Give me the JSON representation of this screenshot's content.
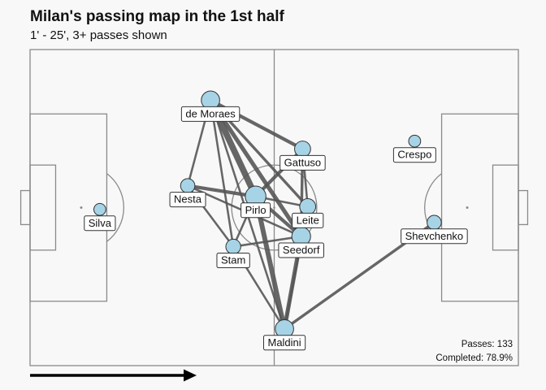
{
  "chart_data": {
    "type": "network",
    "title": "Milan's passing map in the 1st half",
    "subtitle": "1' - 25', 3+ passes shown",
    "pitch": {
      "length": 105,
      "width": 68
    },
    "attack_direction": "right",
    "stats": {
      "passes_label": "Passes: 133",
      "completed_label": "Completed: 78.9%"
    },
    "node_color": "#a6d4e6",
    "edge_color": "#555555",
    "players": [
      {
        "name": "Silva",
        "x": 15.0,
        "y": 33.6,
        "passes": 3
      },
      {
        "name": "de Moraes",
        "x": 38.8,
        "y": 57.1,
        "passes": 14
      },
      {
        "name": "Nesta",
        "x": 33.9,
        "y": 38.7,
        "passes": 6
      },
      {
        "name": "Pirlo",
        "x": 48.5,
        "y": 36.4,
        "passes": 20
      },
      {
        "name": "Stam",
        "x": 43.7,
        "y": 25.6,
        "passes": 7
      },
      {
        "name": "Gattuso",
        "x": 58.6,
        "y": 46.6,
        "passes": 9
      },
      {
        "name": "Leite",
        "x": 59.7,
        "y": 34.2,
        "passes": 9
      },
      {
        "name": "Seedorf",
        "x": 58.3,
        "y": 27.8,
        "passes": 15
      },
      {
        "name": "Maldini",
        "x": 54.7,
        "y": 7.9,
        "passes": 14
      },
      {
        "name": "Crespo",
        "x": 82.7,
        "y": 48.3,
        "passes": 3
      },
      {
        "name": "Shevchenko",
        "x": 86.9,
        "y": 30.8,
        "passes": 6
      }
    ],
    "links": [
      {
        "from": "de Moraes",
        "to": "Pirlo",
        "passes": 9
      },
      {
        "from": "de Moraes",
        "to": "Seedorf",
        "passes": 6
      },
      {
        "from": "de Moraes",
        "to": "Gattuso",
        "passes": 5
      },
      {
        "from": "de Moraes",
        "to": "Leite",
        "passes": 4
      },
      {
        "from": "de Moraes",
        "to": "Stam",
        "passes": 3
      },
      {
        "from": "de Moraes",
        "to": "Nesta",
        "passes": 3
      },
      {
        "from": "de Moraes",
        "to": "Maldini",
        "passes": 3
      },
      {
        "from": "Nesta",
        "to": "Pirlo",
        "passes": 5
      },
      {
        "from": "Nesta",
        "to": "Stam",
        "passes": 3
      },
      {
        "from": "Nesta",
        "to": "Seedorf",
        "passes": 3
      },
      {
        "from": "Pirlo",
        "to": "Gattuso",
        "passes": 5
      },
      {
        "from": "Pirlo",
        "to": "Leite",
        "passes": 3
      },
      {
        "from": "Pirlo",
        "to": "Seedorf",
        "passes": 5
      },
      {
        "from": "Pirlo",
        "to": "Maldini",
        "passes": 7
      },
      {
        "from": "Stam",
        "to": "Pirlo",
        "passes": 3
      },
      {
        "from": "Stam",
        "to": "Seedorf",
        "passes": 3
      },
      {
        "from": "Stam",
        "to": "Maldini",
        "passes": 3
      },
      {
        "from": "Gattuso",
        "to": "Seedorf",
        "passes": 4
      },
      {
        "from": "Gattuso",
        "to": "Leite",
        "passes": 3
      },
      {
        "from": "Leite",
        "to": "Seedorf",
        "passes": 5
      },
      {
        "from": "Seedorf",
        "to": "Maldini",
        "passes": 6
      },
      {
        "from": "Leite",
        "to": "Maldini",
        "passes": 3
      },
      {
        "from": "Maldini",
        "to": "Shevchenko",
        "passes": 4
      }
    ]
  }
}
